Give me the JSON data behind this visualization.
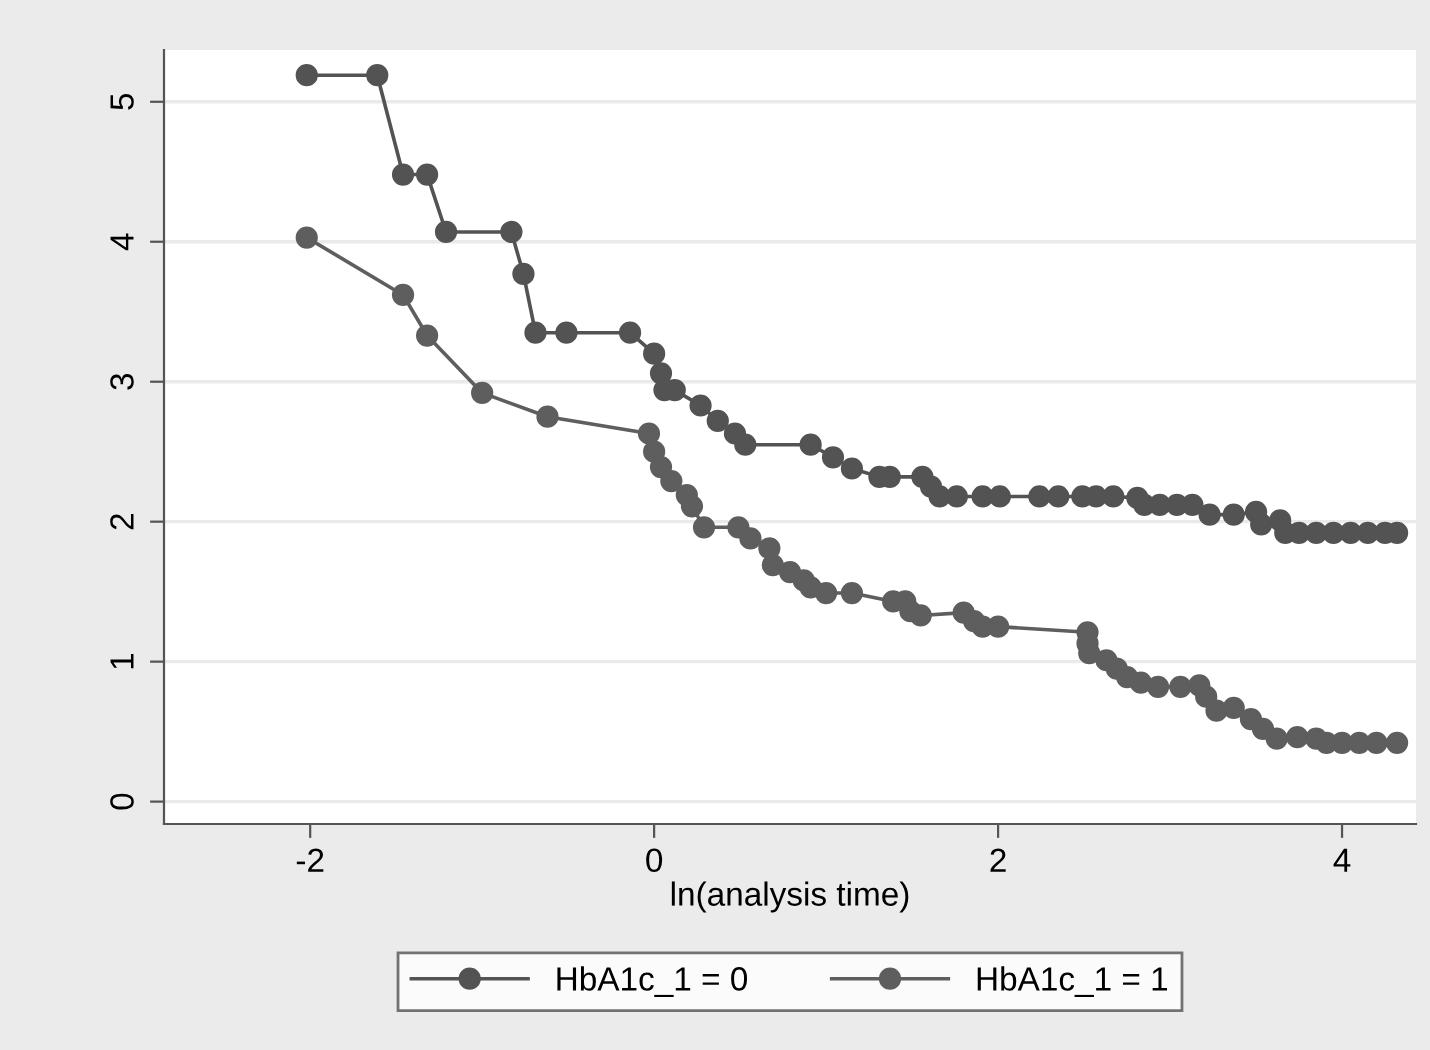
{
  "chart_data": {
    "type": "line",
    "xlabel": "ln(analysis time)",
    "xlim": [
      -2.85,
      4.43
    ],
    "xticks": [
      -2,
      0,
      2,
      4
    ],
    "ylim": [
      -0.16,
      5.37
    ],
    "yticks": [
      0,
      1,
      2,
      3,
      4,
      5
    ],
    "grid": "y",
    "legend": "bottom",
    "marker": "circle",
    "line_style": "solid",
    "series": [
      {
        "name": "HbA1c_1 = 0",
        "color": "#535353",
        "x": [
          -2.02,
          -1.61,
          -1.46,
          -1.32,
          -1.21,
          -0.83,
          -0.76,
          -0.69,
          -0.51,
          -0.14,
          0.0,
          0.04,
          0.06,
          0.12,
          0.27,
          0.37,
          0.47,
          0.53,
          0.91,
          1.04,
          1.15,
          1.31,
          1.37,
          1.56,
          1.61,
          1.66,
          1.76,
          1.91,
          2.01,
          2.24,
          2.35,
          2.49,
          2.57,
          2.67,
          2.81,
          2.85,
          2.94,
          3.04,
          3.13,
          3.23,
          3.37,
          3.5,
          3.53,
          3.64,
          3.67,
          3.75,
          3.85,
          3.95,
          4.05,
          4.15,
          4.25,
          4.32
        ],
        "values": [
          5.19,
          5.19,
          4.48,
          4.48,
          4.07,
          4.07,
          3.77,
          3.35,
          3.35,
          3.35,
          3.2,
          3.06,
          2.94,
          2.94,
          2.83,
          2.72,
          2.63,
          2.55,
          2.55,
          2.46,
          2.38,
          2.32,
          2.32,
          2.32,
          2.25,
          2.18,
          2.18,
          2.18,
          2.18,
          2.18,
          2.18,
          2.18,
          2.18,
          2.18,
          2.17,
          2.12,
          2.12,
          2.12,
          2.12,
          2.05,
          2.05,
          2.07,
          1.98,
          2.01,
          1.92,
          1.92,
          1.92,
          1.92,
          1.92,
          1.92,
          1.92,
          1.92
        ]
      },
      {
        "name": "HbA1c_1 = 1",
        "color": "#5e5e5e",
        "x": [
          -2.02,
          -1.46,
          -1.32,
          -1.0,
          -0.62,
          -0.03,
          0.0,
          0.04,
          0.1,
          0.19,
          0.22,
          0.29,
          0.49,
          0.56,
          0.67,
          0.69,
          0.79,
          0.87,
          0.91,
          1.0,
          1.15,
          1.39,
          1.46,
          1.49,
          1.55,
          1.8,
          1.86,
          1.91,
          2.0,
          2.52,
          2.52,
          2.53,
          2.63,
          2.69,
          2.75,
          2.83,
          2.93,
          3.06,
          3.17,
          3.21,
          3.27,
          3.37,
          3.47,
          3.54,
          3.62,
          3.74,
          3.85,
          3.91,
          4.0,
          4.1,
          4.2,
          4.32
        ],
        "values": [
          4.03,
          3.62,
          3.33,
          2.92,
          2.75,
          2.63,
          2.5,
          2.39,
          2.29,
          2.19,
          2.11,
          1.96,
          1.96,
          1.88,
          1.81,
          1.69,
          1.64,
          1.58,
          1.53,
          1.49,
          1.49,
          1.43,
          1.43,
          1.36,
          1.33,
          1.35,
          1.29,
          1.25,
          1.25,
          1.21,
          1.13,
          1.06,
          1.01,
          0.95,
          0.89,
          0.85,
          0.82,
          0.82,
          0.83,
          0.75,
          0.65,
          0.67,
          0.59,
          0.52,
          0.45,
          0.46,
          0.45,
          0.42,
          0.42,
          0.42,
          0.42,
          0.42
        ]
      }
    ]
  }
}
